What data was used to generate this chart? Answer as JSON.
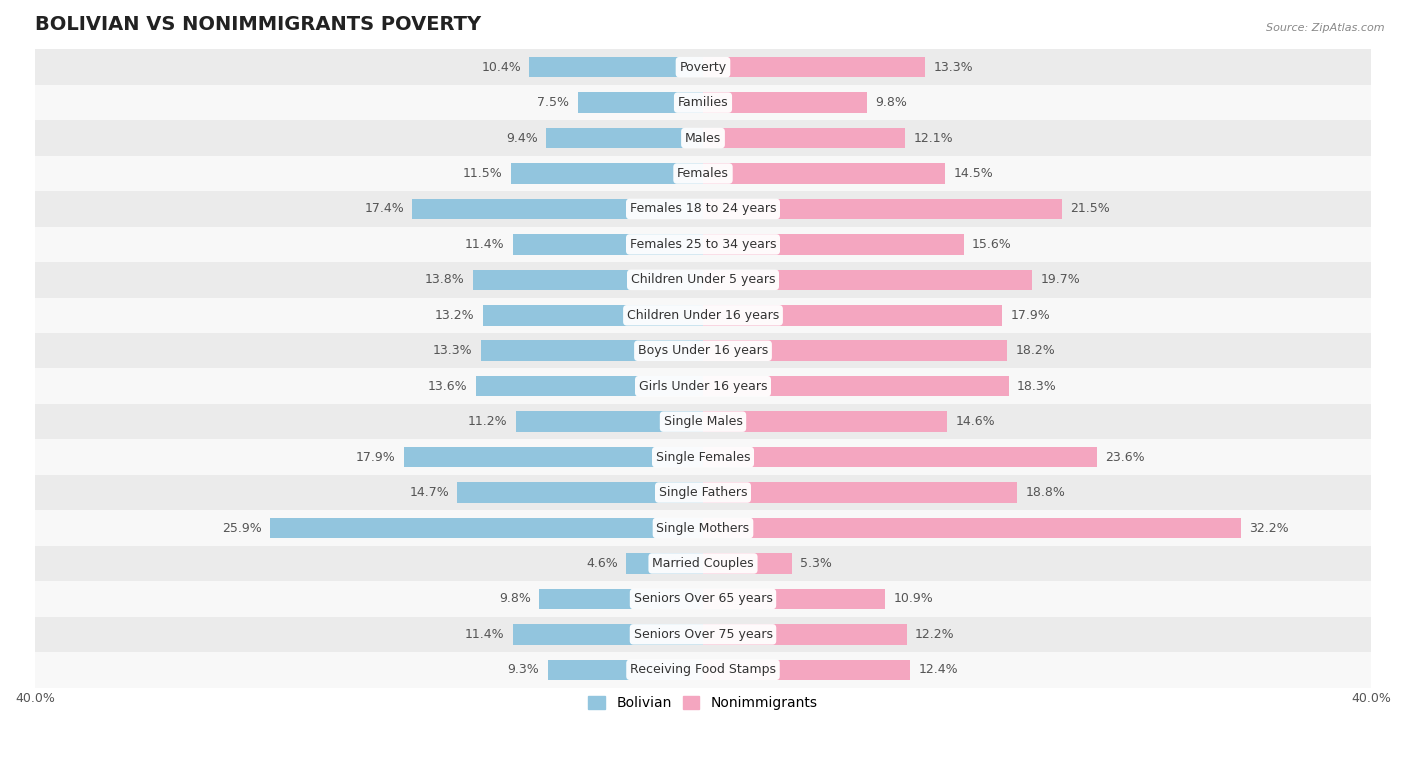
{
  "title": "BOLIVIAN VS NONIMMIGRANTS POVERTY",
  "source": "Source: ZipAtlas.com",
  "categories": [
    "Poverty",
    "Families",
    "Males",
    "Females",
    "Females 18 to 24 years",
    "Females 25 to 34 years",
    "Children Under 5 years",
    "Children Under 16 years",
    "Boys Under 16 years",
    "Girls Under 16 years",
    "Single Males",
    "Single Females",
    "Single Fathers",
    "Single Mothers",
    "Married Couples",
    "Seniors Over 65 years",
    "Seniors Over 75 years",
    "Receiving Food Stamps"
  ],
  "bolivian": [
    10.4,
    7.5,
    9.4,
    11.5,
    17.4,
    11.4,
    13.8,
    13.2,
    13.3,
    13.6,
    11.2,
    17.9,
    14.7,
    25.9,
    4.6,
    9.8,
    11.4,
    9.3
  ],
  "nonimmigrants": [
    13.3,
    9.8,
    12.1,
    14.5,
    21.5,
    15.6,
    19.7,
    17.9,
    18.2,
    18.3,
    14.6,
    23.6,
    18.8,
    32.2,
    5.3,
    10.9,
    12.2,
    12.4
  ],
  "bolivian_color": "#92c5de",
  "nonimmigrants_color": "#f4a6c0",
  "background_row_light": "#ebebeb",
  "background_row_dark": "#f8f8f8",
  "xlim": 40.0,
  "bar_height": 0.58,
  "title_fontsize": 14,
  "label_fontsize": 9,
  "value_fontsize": 9,
  "tick_fontsize": 9,
  "legend_fontsize": 10
}
